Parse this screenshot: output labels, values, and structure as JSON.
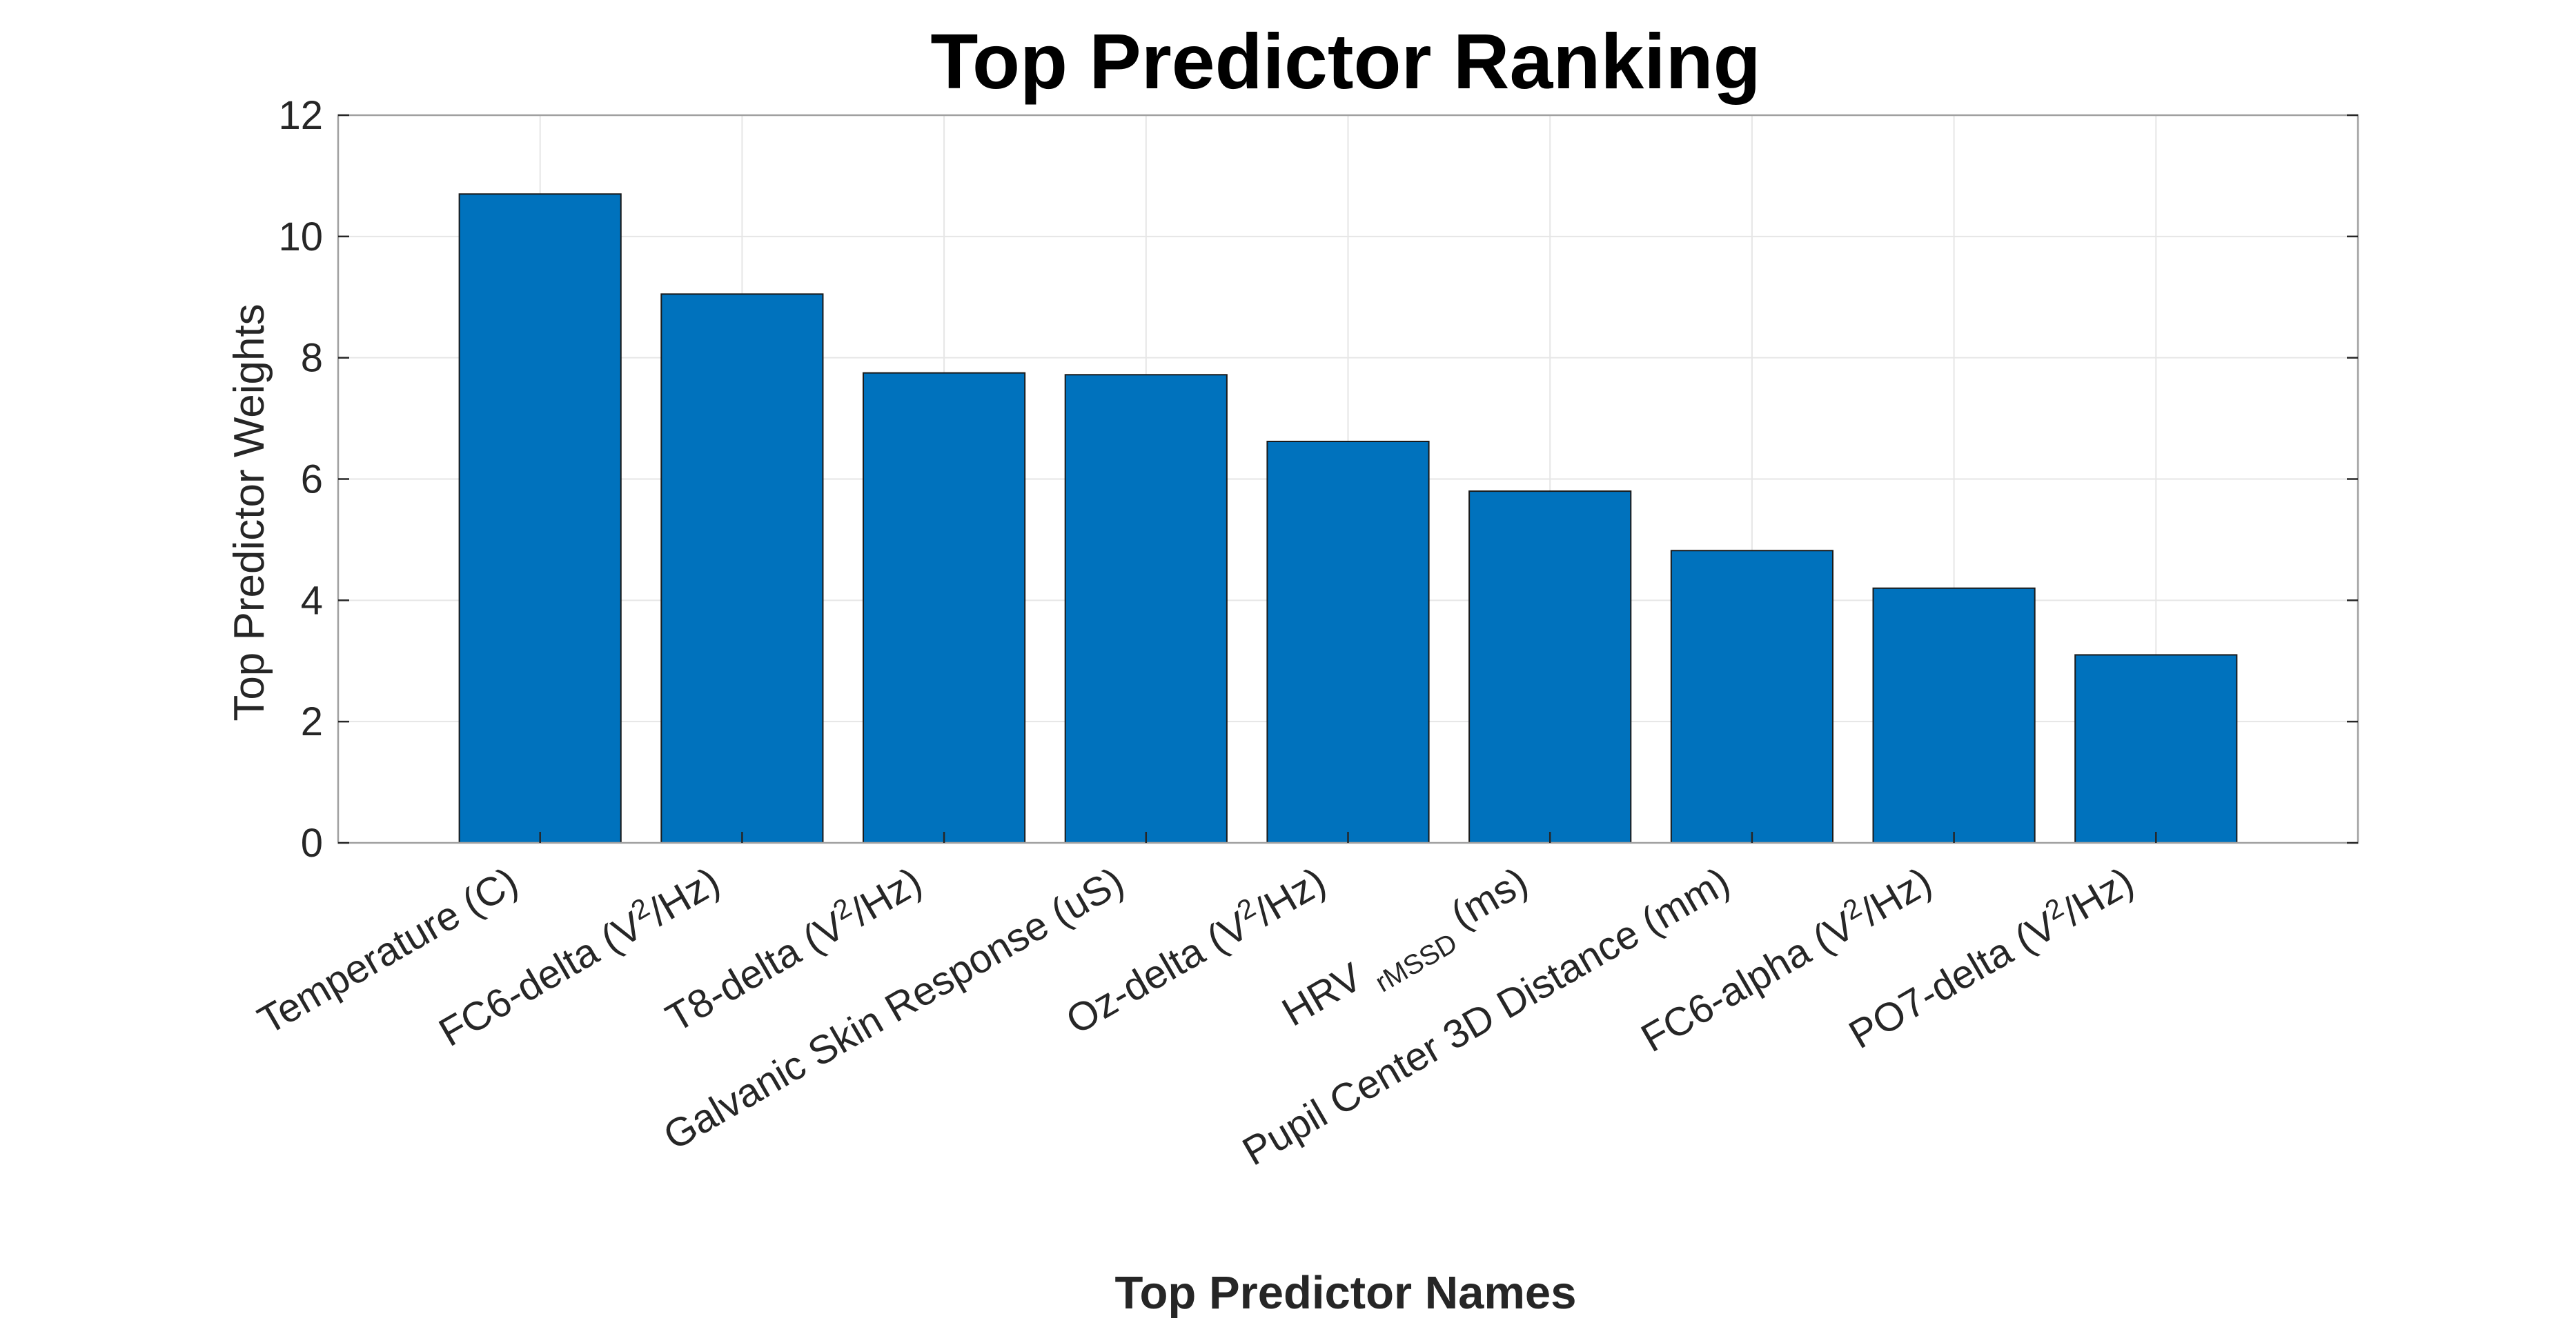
{
  "chart_data": {
    "type": "bar",
    "title": "Top Predictor Ranking",
    "xlabel": "Top Predictor Names",
    "ylabel": "Top Predictor Weights",
    "categories": [
      {
        "text": "Temperature (C)",
        "parts": [
          {
            "t": "Temperature (C)"
          }
        ]
      },
      {
        "text": "FC6-delta (V2/Hz)",
        "parts": [
          {
            "t": "FC6-delta (V"
          },
          {
            "t": "2",
            "sup": true
          },
          {
            "t": "/Hz)"
          }
        ]
      },
      {
        "text": "T8-delta (V2/Hz)",
        "parts": [
          {
            "t": "T8-delta (V"
          },
          {
            "t": "2",
            "sup": true
          },
          {
            "t": "/Hz)"
          }
        ]
      },
      {
        "text": "Galvanic Skin Response (uS)",
        "parts": [
          {
            "t": "Galvanic Skin Response (uS)"
          }
        ]
      },
      {
        "text": "Oz-delta (V2/Hz)",
        "parts": [
          {
            "t": "Oz-delta (V"
          },
          {
            "t": "2",
            "sup": true
          },
          {
            "t": "/Hz)"
          }
        ]
      },
      {
        "text": "HRV rMSSD (ms)",
        "parts": [
          {
            "t": "HRV "
          },
          {
            "t": "rMSSD",
            "sub": true
          },
          {
            "t": " (ms)"
          }
        ]
      },
      {
        "text": "Pupil Center 3D Distance (mm)",
        "parts": [
          {
            "t": "Pupil Center 3D Distance (mm)"
          }
        ]
      },
      {
        "text": "FC6-alpha (V2/Hz)",
        "parts": [
          {
            "t": "FC6-alpha (V"
          },
          {
            "t": "2",
            "sup": true
          },
          {
            "t": "/Hz)"
          }
        ]
      },
      {
        "text": "PO7-delta (V2/Hz)",
        "parts": [
          {
            "t": "PO7-delta (V"
          },
          {
            "t": "2",
            "sup": true
          },
          {
            "t": "/Hz)"
          }
        ]
      }
    ],
    "values": [
      10.7,
      9.05,
      7.75,
      7.72,
      6.62,
      5.8,
      4.82,
      4.2,
      3.1
    ],
    "ylim": [
      0,
      12
    ],
    "yticks": [
      0,
      2,
      4,
      6,
      8,
      10,
      12
    ],
    "xlim": [
      0,
      10
    ],
    "grid": true,
    "bar_color": "#0072bd"
  }
}
